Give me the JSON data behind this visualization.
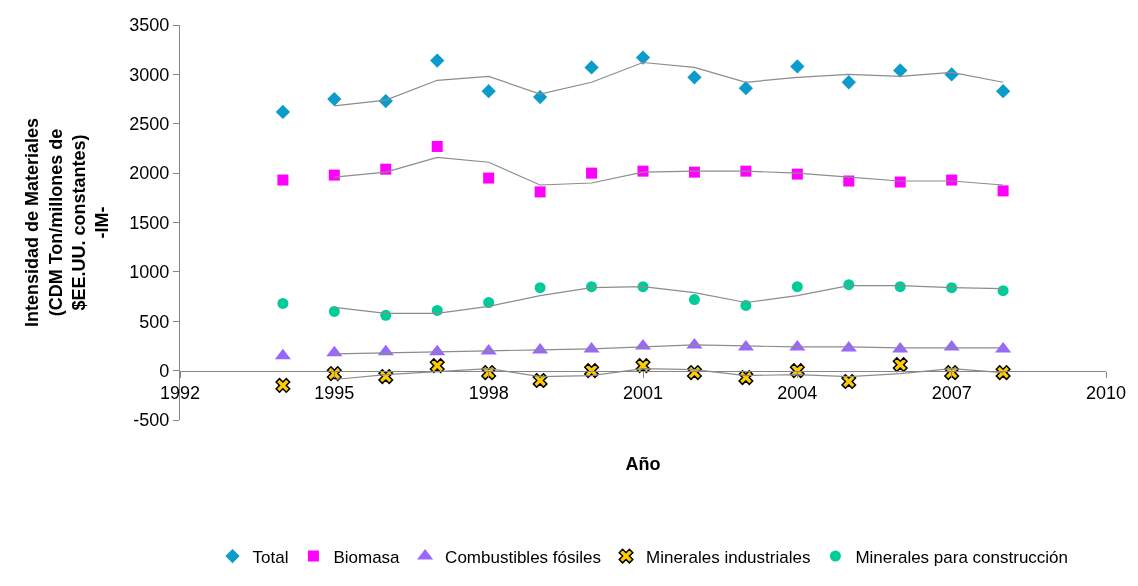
{
  "chart_data": {
    "type": "scatter",
    "xlabel": "Año",
    "ylabel": "Intensidad de Materiales\n(CDM Ton/millones de\n$EE.UU. constantes)\n-IM-",
    "x": [
      1994,
      1995,
      1996,
      1997,
      1998,
      1999,
      2000,
      2001,
      2002,
      2003,
      2004,
      2005,
      2006,
      2007,
      2008
    ],
    "xlim": [
      1992,
      2010
    ],
    "xticks": [
      1992,
      1995,
      1998,
      2001,
      2004,
      2007,
      2010
    ],
    "ylim": [
      -500,
      3500
    ],
    "yticks": [
      -500,
      0,
      500,
      1000,
      1500,
      2000,
      2500,
      3000,
      3500
    ],
    "legend": "bottom",
    "series": [
      {
        "name": "Total",
        "color": "#0c9ccc",
        "marker": "diamond",
        "values": [
          2620,
          2750,
          2730,
          3140,
          2830,
          2770,
          3070,
          3170,
          2970,
          2860,
          3080,
          2920,
          3040,
          3000,
          2830
        ]
      },
      {
        "name": "Biomasa",
        "color": "#ff00ff",
        "marker": "square",
        "values": [
          1930,
          1980,
          2040,
          2270,
          1950,
          1810,
          2000,
          2020,
          2010,
          2020,
          1990,
          1920,
          1910,
          1930,
          1820
        ]
      },
      {
        "name": "Combustibles fósiles",
        "color": "#9966ff",
        "marker": "triangle",
        "values": [
          150,
          180,
          190,
          190,
          200,
          210,
          220,
          250,
          260,
          240,
          240,
          230,
          220,
          240,
          220
        ]
      },
      {
        "name": "Minerales industriales",
        "color": "#ffcc00",
        "marker": "cross",
        "values": [
          -150,
          -30,
          -60,
          50,
          -20,
          -100,
          0,
          50,
          -20,
          -70,
          0,
          -110,
          60,
          -20,
          -20
        ]
      },
      {
        "name": "Minerales para construcción",
        "color": "#00cc99",
        "marker": "circle",
        "values": [
          680,
          600,
          560,
          610,
          690,
          840,
          850,
          850,
          720,
          660,
          850,
          870,
          850,
          840,
          810
        ]
      },
      {
        "type": "line",
        "color": "#8c8c8c",
        "marker": "none",
        "x": [
          1995,
          1996,
          1997,
          1998,
          1999,
          2000,
          2001,
          2002,
          2003,
          2004,
          2005,
          2006,
          2007,
          2008
        ],
        "values": [
          2680,
          2740,
          2940,
          2980,
          2800,
          2920,
          3120,
          3070,
          2920,
          2970,
          3000,
          2980,
          3020,
          2920
        ]
      },
      {
        "type": "line",
        "color": "#8c8c8c",
        "marker": "none",
        "x": [
          1995,
          1996,
          1997,
          1998,
          1999,
          2000,
          2001,
          2002,
          2003,
          2004,
          2005,
          2006,
          2007,
          2008
        ],
        "values": [
          1960,
          2010,
          2160,
          2110,
          1880,
          1900,
          2010,
          2020,
          2020,
          2000,
          1960,
          1920,
          1920,
          1880
        ]
      },
      {
        "type": "line",
        "color": "#8c8c8c",
        "marker": "none",
        "x": [
          1995,
          1996,
          1997,
          1998,
          1999,
          2000,
          2001,
          2002,
          2003,
          2004,
          2005,
          2006,
          2007,
          2008
        ],
        "values": [
          170,
          180,
          190,
          200,
          210,
          220,
          240,
          260,
          250,
          240,
          240,
          230,
          230,
          230
        ]
      },
      {
        "type": "line",
        "color": "#8c8c8c",
        "marker": "none",
        "x": [
          1995,
          1996,
          1997,
          1998,
          1999,
          2000,
          2001,
          2002,
          2003,
          2004,
          2005,
          2006,
          2007,
          2008
        ],
        "values": [
          -90,
          -40,
          -10,
          20,
          -60,
          -50,
          20,
          10,
          -50,
          -40,
          -60,
          -30,
          20,
          -20
        ]
      },
      {
        "type": "line",
        "color": "#8c8c8c",
        "marker": "none",
        "x": [
          1995,
          1996,
          1997,
          1998,
          1999,
          2000,
          2001,
          2002,
          2003,
          2004,
          2005,
          2006,
          2007,
          2008
        ],
        "values": [
          640,
          580,
          580,
          650,
          760,
          840,
          850,
          790,
          690,
          760,
          860,
          860,
          840,
          830
        ]
      }
    ]
  }
}
